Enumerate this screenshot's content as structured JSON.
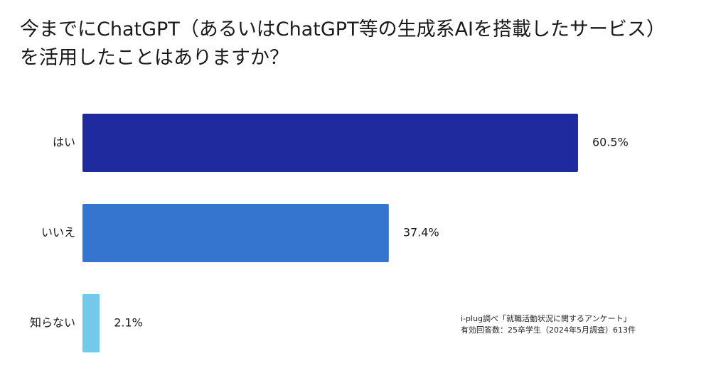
{
  "chart_data": {
    "type": "bar",
    "orientation": "horizontal",
    "title_lines": [
      "今までにChatGPT（あるいはChatGPT等の生成系AIを搭載したサービス）",
      "を活用したことはありますか？"
    ],
    "categories": [
      "はい",
      "いいえ",
      "知らない"
    ],
    "values": [
      60.5,
      37.4,
      2.1
    ],
    "value_labels": [
      "60.5%",
      "37.4%",
      "2.1%"
    ],
    "colors": [
      "#1f2a9e",
      "#3575d0",
      "#73c9ea"
    ],
    "xlim": [
      0,
      100
    ],
    "unit": "%",
    "grid": false,
    "legend": "none"
  },
  "note": {
    "line1": "i-plug調べ「就職活動状況に関するアンケート」",
    "line2": "有効回答数：25卒学生（2024年5月調査）613件"
  }
}
